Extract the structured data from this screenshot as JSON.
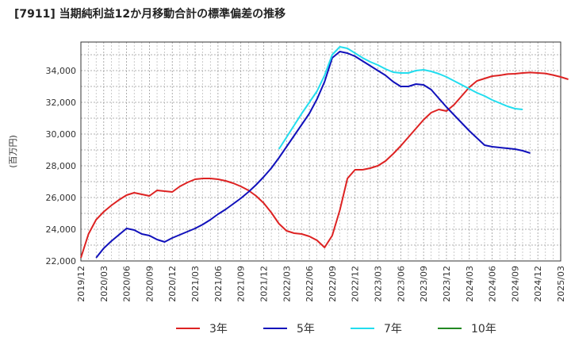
{
  "chart_data": {
    "type": "line",
    "title": "[7911]  当期純利益12か月移動合計の標準偏差の推移",
    "ylabel": "(百万円)",
    "xlabel": "",
    "ylim": [
      22000,
      35800
    ],
    "yticks": [
      22000,
      24000,
      26000,
      28000,
      30000,
      32000,
      34000
    ],
    "ytick_labels": [
      "22,000",
      "24,000",
      "26,000",
      "28,000",
      "30,000",
      "32,000",
      "34,000"
    ],
    "xticks": [
      "2019/12",
      "2020/03",
      "2020/06",
      "2020/09",
      "2020/12",
      "2021/03",
      "2021/06",
      "2021/09",
      "2021/12",
      "2022/03",
      "2022/06",
      "2022/09",
      "2022/12",
      "2023/03",
      "2023/06",
      "2023/09",
      "2023/12",
      "2024/03",
      "2024/06",
      "2024/09",
      "2024/12",
      "2025/03"
    ],
    "grid": true,
    "legend_position": "bottom",
    "series": [
      {
        "name": "3年",
        "color": "#dd2222",
        "start": "2019/12",
        "values": [
          22200,
          23700,
          24600,
          25100,
          25500,
          25850,
          26150,
          26300,
          26200,
          26100,
          26450,
          26400,
          26350,
          26700,
          26950,
          27150,
          27200,
          27200,
          27150,
          27050,
          26900,
          26700,
          26450,
          26100,
          25650,
          25050,
          24350,
          23900,
          23750,
          23700,
          23550,
          23300,
          22850,
          23600,
          25200,
          27200,
          27750,
          27750,
          27850,
          28000,
          28300,
          28750,
          29250,
          29800,
          30350,
          30900,
          31350,
          31550,
          31450,
          31850,
          32400,
          32950,
          33350,
          33500,
          33650,
          33700,
          33780,
          33800,
          33850,
          33880,
          33850,
          33820,
          33720,
          33600,
          33450
        ]
      },
      {
        "name": "5年",
        "color": "#1111bb",
        "start": "2020/02",
        "values": [
          22200,
          22800,
          23250,
          23650,
          24050,
          23950,
          23700,
          23600,
          23350,
          23200,
          23450,
          23650,
          23850,
          24050,
          24300,
          24600,
          24950,
          25250,
          25600,
          25950,
          26350,
          26800,
          27300,
          27850,
          28500,
          29200,
          29900,
          30600,
          31300,
          32200,
          33300,
          34800,
          35200,
          35100,
          34900,
          34600,
          34300,
          34000,
          33700,
          33300,
          33000,
          33000,
          33150,
          33100,
          32800,
          32250,
          31700,
          31200,
          30700,
          30200,
          29750,
          29300,
          29200,
          29150,
          29100,
          29050,
          28950,
          28800
        ]
      },
      {
        "name": "7年",
        "color": "#22ddee",
        "start": "2022/02",
        "values": [
          29050,
          29800,
          30550,
          31300,
          32000,
          32700,
          33700,
          35000,
          35500,
          35400,
          35100,
          34800,
          34550,
          34350,
          34100,
          33900,
          33850,
          33850,
          34000,
          34050,
          33950,
          33800,
          33600,
          33350,
          33100,
          32850,
          32600,
          32400,
          32150,
          31950,
          31750,
          31600,
          31550
        ]
      },
      {
        "name": "10年",
        "color": "#228822",
        "start": "2025/03",
        "values": []
      }
    ]
  }
}
